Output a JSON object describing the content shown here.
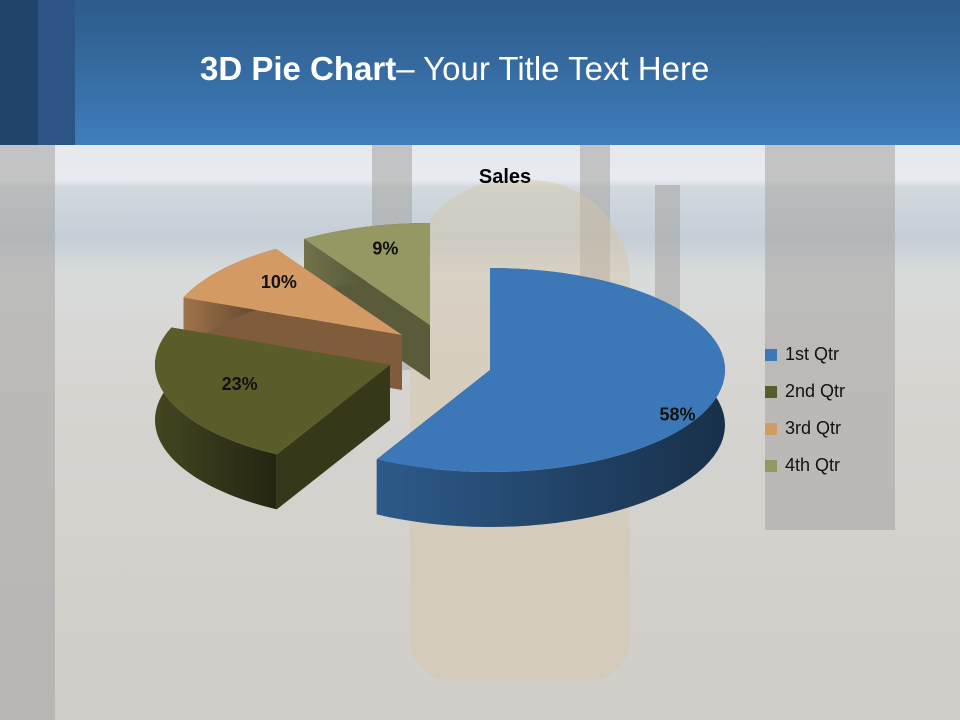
{
  "slide": {
    "title_bold": "3D Pie Chart",
    "title_rest": "– Your Title Text Here"
  },
  "chart_data": {
    "type": "pie",
    "style": "3d-exploded",
    "title": "Sales",
    "categories": [
      "1st Qtr",
      "2nd Qtr",
      "3rd Qtr",
      "4th Qtr"
    ],
    "values": [
      58,
      23,
      10,
      9
    ],
    "labels": [
      "58%",
      "23%",
      "10%",
      "9%"
    ],
    "colors": [
      "#3c78b8",
      "#5a5d2a",
      "#d49a64",
      "#959862"
    ],
    "legend_position": "right"
  }
}
